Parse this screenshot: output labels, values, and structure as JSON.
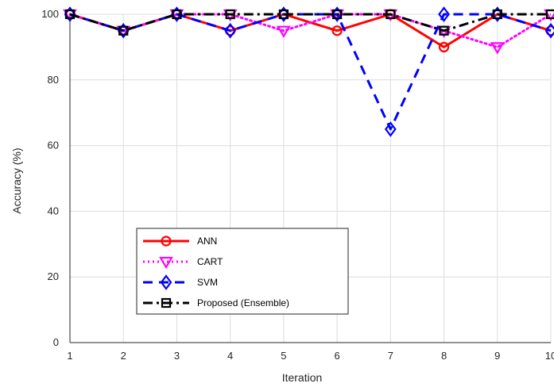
{
  "chart_data": {
    "type": "line",
    "xlabel": "Iteration",
    "ylabel": "Accuracy (%)",
    "x": [
      1,
      2,
      3,
      4,
      5,
      6,
      7,
      8,
      9,
      10
    ],
    "xlim": [
      1,
      10
    ],
    "ylim": [
      0,
      100
    ],
    "xticks": [
      "1",
      "2",
      "3",
      "4",
      "5",
      "6",
      "7",
      "8",
      "9",
      "10"
    ],
    "yticks": [
      "0",
      "20",
      "40",
      "60",
      "80",
      "100"
    ],
    "grid": true,
    "legend_position": "lower-left",
    "series": [
      {
        "name": "ANN",
        "values": [
          100,
          95,
          100,
          95,
          100,
          95,
          100,
          90,
          100,
          95
        ],
        "color": "#ff0000",
        "line_style": "solid",
        "marker": "circle"
      },
      {
        "name": "CART",
        "values": [
          100,
          95,
          100,
          100,
          95,
          100,
          100,
          95,
          90,
          100
        ],
        "color": "#ff00ff",
        "line_style": "dotted",
        "marker": "triangle-down"
      },
      {
        "name": "SVM",
        "values": [
          100,
          95,
          100,
          95,
          100,
          100,
          65,
          100,
          100,
          95
        ],
        "color": "#0000ff",
        "line_style": "dashed",
        "marker": "diamond"
      },
      {
        "name": "Proposed (Ensemble)",
        "values": [
          100,
          95,
          100,
          100,
          100,
          100,
          100,
          95,
          100,
          100
        ],
        "color": "#000000",
        "line_style": "dash-dot",
        "marker": "square"
      }
    ]
  }
}
